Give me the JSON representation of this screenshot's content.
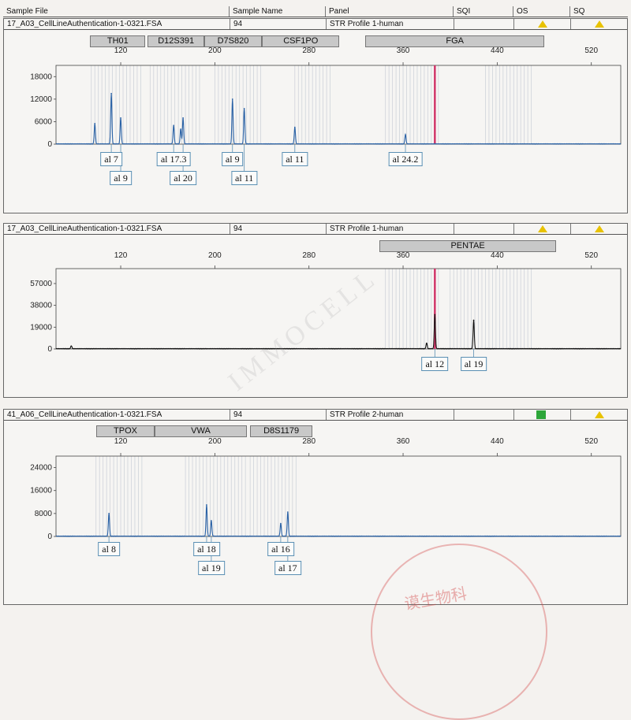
{
  "columns": [
    "Sample File",
    "Sample Name",
    "Panel",
    "SQI",
    "OS",
    "SQ"
  ],
  "x_ticks": [
    120,
    200,
    280,
    360,
    440,
    520
  ],
  "watermark_text": "IMMOCELL",
  "stamp_text": "谟生物科",
  "colors": {
    "trace": "#2a62a6",
    "trace_dark": "#111111",
    "bin": "#cfd3da",
    "red_line": "#d1366a",
    "warn": "#e8c200",
    "pass": "#2da63a"
  },
  "panels": [
    {
      "sample_file": "17_A03_CellLineAuthentication-1-0321.FSA",
      "sample_name": "94",
      "panel_name": "STR Profile 1-human",
      "os_status": "warning-triangle",
      "sq_status": "warning-triangle",
      "markers": [
        {
          "name": "TH01",
          "start": 94,
          "end": 141
        },
        {
          "name": "D12S391",
          "start": 143,
          "end": 191
        },
        {
          "name": "D7S820",
          "start": 191,
          "end": 240
        },
        {
          "name": "CSF1PO",
          "start": 240,
          "end": 306
        },
        {
          "name": "FGA",
          "start": 328,
          "end": 480
        }
      ],
      "y_ticks": [
        0,
        6000,
        12000,
        18000
      ],
      "ylim": [
        0,
        21000
      ],
      "bins": [
        [
          95,
          138
        ],
        [
          145,
          188
        ],
        [
          200,
          240
        ],
        [
          268,
          300
        ],
        [
          345,
          390
        ],
        [
          430,
          470
        ]
      ],
      "red_line": 387,
      "trace_color": "#2a62a6",
      "peaks": [
        {
          "x": 98,
          "h": 5500
        },
        {
          "x": 112,
          "h": 13500
        },
        {
          "x": 120,
          "h": 7000
        },
        {
          "x": 165,
          "h": 5000
        },
        {
          "x": 173,
          "h": 7000
        },
        {
          "x": 171,
          "h": 4000
        },
        {
          "x": 215,
          "h": 12000
        },
        {
          "x": 225,
          "h": 9500
        },
        {
          "x": 268,
          "h": 4500
        },
        {
          "x": 362,
          "h": 2500
        }
      ],
      "alleles": [
        {
          "label": "al 7",
          "x": 112,
          "row": 0
        },
        {
          "label": "al 9",
          "x": 120,
          "row": 1
        },
        {
          "label": "al 17.3",
          "x": 165,
          "row": 0
        },
        {
          "label": "al 20",
          "x": 173,
          "row": 1
        },
        {
          "label": "al 9",
          "x": 215,
          "row": 0
        },
        {
          "label": "al 11",
          "x": 225,
          "row": 1
        },
        {
          "label": "al 11",
          "x": 268,
          "row": 0
        },
        {
          "label": "al 24.2",
          "x": 362,
          "row": 0
        }
      ]
    },
    {
      "sample_file": "17_A03_CellLineAuthentication-1-0321.FSA",
      "sample_name": "94",
      "panel_name": "STR Profile 1-human",
      "os_status": "warning-triangle",
      "sq_status": "warning-triangle",
      "markers": [
        {
          "name": "PENTAE",
          "start": 340,
          "end": 490
        }
      ],
      "y_ticks": [
        0,
        19000,
        38000,
        57000
      ],
      "ylim": [
        0,
        70000
      ],
      "bins": [
        [
          345,
          390
        ],
        [
          400,
          470
        ]
      ],
      "red_line": 387,
      "trace_color": "#111111",
      "peaks": [
        {
          "x": 78,
          "h": 2500
        },
        {
          "x": 380,
          "h": 5000
        },
        {
          "x": 387,
          "h": 30000
        },
        {
          "x": 420,
          "h": 25000
        }
      ],
      "alleles": [
        {
          "label": "al 12",
          "x": 387,
          "row": 0
        },
        {
          "label": "al 19",
          "x": 420,
          "row": 0
        }
      ]
    },
    {
      "sample_file": "41_A06_CellLineAuthentication-1-0321.FSA",
      "sample_name": "94",
      "panel_name": "STR Profile 2-human",
      "os_status": "pass-square",
      "sq_status": "warning-triangle",
      "markers": [
        {
          "name": "TPOX",
          "start": 99,
          "end": 149
        },
        {
          "name": "VWA",
          "start": 149,
          "end": 227
        },
        {
          "name": "D8S1179",
          "start": 230,
          "end": 283
        }
      ],
      "y_ticks": [
        0,
        8000,
        16000,
        24000
      ],
      "ylim": [
        0,
        28000
      ],
      "bins": [
        [
          99,
          138
        ],
        [
          175,
          226
        ],
        [
          230,
          270
        ]
      ],
      "red_line": null,
      "trace_color": "#2a62a6",
      "peaks": [
        {
          "x": 110,
          "h": 8000
        },
        {
          "x": 193,
          "h": 11000
        },
        {
          "x": 197,
          "h": 5500
        },
        {
          "x": 256,
          "h": 4500
        },
        {
          "x": 262,
          "h": 8500
        }
      ],
      "alleles": [
        {
          "label": "al 8",
          "x": 110,
          "row": 0
        },
        {
          "label": "al 18",
          "x": 193,
          "row": 0
        },
        {
          "label": "al 19",
          "x": 197,
          "row": 1
        },
        {
          "label": "al 16",
          "x": 256,
          "row": 0
        },
        {
          "label": "al 17",
          "x": 262,
          "row": 1
        }
      ]
    }
  ],
  "chart_data": [
    {
      "type": "line",
      "title": "",
      "series": [
        {
          "name": "",
          "x": [
            98,
            112,
            120,
            165,
            171,
            173,
            215,
            225,
            268,
            362
          ],
          "values": [
            5500,
            13500,
            7000,
            5000,
            4000,
            7000,
            12000,
            9500,
            4500,
            2500
          ]
        }
      ],
      "xlim": [
        65,
        545
      ],
      "ylim": [
        0,
        21000
      ],
      "grid": false
    },
    {
      "type": "line",
      "title": "",
      "series": [
        {
          "name": "",
          "x": [
            78,
            380,
            387,
            420
          ],
          "values": [
            2500,
            5000,
            30000,
            25000
          ]
        }
      ],
      "xlim": [
        65,
        545
      ],
      "ylim": [
        0,
        70000
      ],
      "grid": false
    },
    {
      "type": "line",
      "title": "",
      "series": [
        {
          "name": "",
          "x": [
            110,
            193,
            197,
            256,
            262
          ],
          "values": [
            8000,
            11000,
            5500,
            4500,
            8500
          ]
        }
      ],
      "xlim": [
        65,
        545
      ],
      "ylim": [
        0,
        28000
      ],
      "grid": false
    }
  ]
}
